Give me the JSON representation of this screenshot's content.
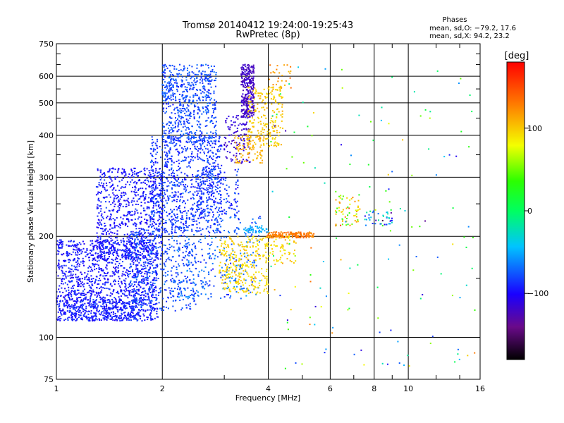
{
  "chart_data": {
    "type": "scatter",
    "title": "Tromsø 20140412 19:24:00-19:25:43",
    "subtitle": "RwPretec (8p)",
    "xlabel": "Frequency [MHz]",
    "ylabel": "Stationary phase Virtual Height [km]",
    "x_scale": "log",
    "y_scale": "log",
    "xlim": [
      1,
      16
    ],
    "ylim": [
      75,
      750
    ],
    "x_ticks": [
      1,
      2,
      4,
      6,
      8,
      10,
      16
    ],
    "x_tick_labels": [
      "1",
      "2",
      "4",
      "6",
      "8",
      "10",
      "16"
    ],
    "x_minor_ticks": [
      3,
      5,
      7,
      9,
      12,
      14
    ],
    "y_ticks": [
      75,
      100,
      200,
      300,
      400,
      500,
      600,
      750
    ],
    "y_tick_labels": [
      "75",
      "100",
      "200",
      "300",
      "400",
      "500",
      "600",
      "750"
    ],
    "y_minor_ticks": [
      150,
      250,
      350,
      450,
      550,
      650,
      700
    ],
    "grid": true,
    "legend": {
      "title": "Phases",
      "line1": "mean, sd,O: −79.2, 17.6",
      "line2": "mean, sd,X:  94.2, 23.2"
    },
    "colorbar": {
      "unit_label": "[deg]",
      "range": [
        -180,
        180
      ],
      "ticks": [
        100,
        0,
        -100
      ],
      "tick_labels": [
        "100",
        "0",
        "−100"
      ]
    },
    "point_clusters": [
      {
        "x_range": [
          1.0,
          1.95
        ],
        "y_range": [
          112,
          195
        ],
        "count": 1300,
        "phase": -95,
        "phase_sd": 12
      },
      {
        "x_range": [
          1.05,
          1.75
        ],
        "y_range": [
          112,
          130
        ],
        "count": 260,
        "phase": -90,
        "phase_sd": 10
      },
      {
        "x_range": [
          1.3,
          2.0
        ],
        "y_range": [
          170,
          320
        ],
        "count": 750,
        "phase": -95,
        "phase_sd": 12
      },
      {
        "x_range": [
          1.6,
          2.5
        ],
        "y_range": [
          120,
          210
        ],
        "count": 420,
        "phase": -80,
        "phase_sd": 14
      },
      {
        "x_range": [
          1.85,
          2.95
        ],
        "y_range": [
          205,
          400
        ],
        "count": 850,
        "phase": -85,
        "phase_sd": 14
      },
      {
        "x_range": [
          2.0,
          2.85
        ],
        "y_range": [
          380,
          650
        ],
        "count": 650,
        "phase": -80,
        "phase_sd": 14
      },
      {
        "x_range": [
          2.2,
          3.8
        ],
        "y_range": [
          130,
          230
        ],
        "count": 300,
        "phase": -72,
        "phase_sd": 18
      },
      {
        "x_range": [
          2.5,
          3.3
        ],
        "y_range": [
          230,
          320
        ],
        "count": 150,
        "phase": -85,
        "phase_sd": 15
      },
      {
        "x_range": [
          3.35,
          3.65
        ],
        "y_range": [
          450,
          650
        ],
        "count": 300,
        "phase": -120,
        "phase_sd": 8
      },
      {
        "x_range": [
          3.0,
          3.55
        ],
        "y_range": [
          330,
          460
        ],
        "count": 120,
        "phase": -115,
        "phase_sd": 8
      },
      {
        "x_range": [
          3.5,
          4.4
        ],
        "y_range": [
          370,
          560
        ],
        "count": 220,
        "phase": 100,
        "phase_sd": 10
      },
      {
        "x_range": [
          3.2,
          3.9
        ],
        "y_range": [
          330,
          400
        ],
        "count": 90,
        "phase": 110,
        "phase_sd": 10
      },
      {
        "x_range": [
          2.9,
          4.0
        ],
        "y_range": [
          135,
          200
        ],
        "count": 300,
        "phase": 95,
        "phase_sd": 12
      },
      {
        "x_range": [
          3.95,
          5.4
        ],
        "y_range": [
          198,
          206
        ],
        "count": 160,
        "phase": 130,
        "phase_sd": 12
      },
      {
        "x_range": [
          3.4,
          4.0
        ],
        "y_range": [
          205,
          215
        ],
        "count": 45,
        "phase": -50,
        "phase_sd": 10
      },
      {
        "x_range": [
          4.0,
          4.8
        ],
        "y_range": [
          165,
          200
        ],
        "count": 60,
        "phase": 95,
        "phase_sd": 15
      },
      {
        "x_range": [
          4.0,
          4.7
        ],
        "y_range": [
          540,
          650
        ],
        "count": 25,
        "phase": 120,
        "phase_sd": 15
      },
      {
        "x_range": [
          6.2,
          7.3
        ],
        "y_range": [
          215,
          265
        ],
        "count": 60,
        "phase": 80,
        "phase_sd": 60
      },
      {
        "x_range": [
          7.5,
          9.0
        ],
        "y_range": [
          215,
          240
        ],
        "count": 40,
        "phase": -60,
        "phase_sd": 60
      },
      {
        "x_range": [
          4.0,
          15.5
        ],
        "y_range": [
          80,
          650
        ],
        "count": 150,
        "phase": 0,
        "phase_sd": 110
      }
    ]
  }
}
